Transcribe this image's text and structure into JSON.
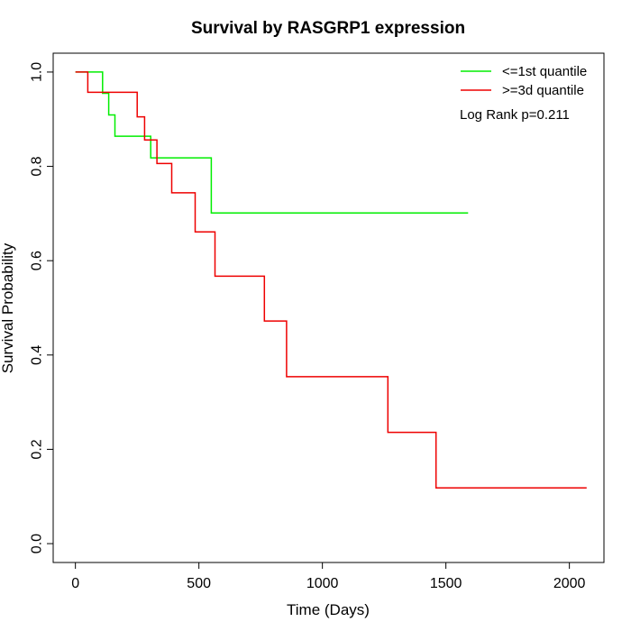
{
  "chart_data": {
    "type": "line",
    "step": true,
    "title": "Survival by RASGRP1 expression",
    "xlabel": "Time (Days)",
    "ylabel": "Survival Probability",
    "xlim": [
      -90,
      2140
    ],
    "ylim": [
      -0.04,
      1.04
    ],
    "xticks": [
      0,
      500,
      1000,
      1500,
      2000
    ],
    "yticks": [
      0.0,
      0.2,
      0.4,
      0.6,
      0.8,
      1.0
    ],
    "ytick_labels": [
      "0.0",
      "0.2",
      "0.4",
      "0.6",
      "0.8",
      "1.0"
    ],
    "annotation": "Log Rank p=0.211",
    "legend_position": "top-right",
    "series": [
      {
        "name": "<=1st quantile",
        "color": "#00ee00",
        "points": [
          [
            0,
            1.0
          ],
          [
            110,
            1.0
          ],
          [
            110,
            0.955
          ],
          [
            135,
            0.955
          ],
          [
            135,
            0.909
          ],
          [
            160,
            0.909
          ],
          [
            160,
            0.864
          ],
          [
            305,
            0.864
          ],
          [
            305,
            0.818
          ],
          [
            550,
            0.818
          ],
          [
            550,
            0.701
          ],
          [
            1590,
            0.701
          ]
        ]
      },
      {
        "name": ">=3d quantile",
        "color": "#ee0000",
        "points": [
          [
            0,
            1.0
          ],
          [
            50,
            1.0
          ],
          [
            50,
            0.957
          ],
          [
            250,
            0.957
          ],
          [
            250,
            0.905
          ],
          [
            280,
            0.905
          ],
          [
            280,
            0.856
          ],
          [
            330,
            0.856
          ],
          [
            330,
            0.806
          ],
          [
            390,
            0.806
          ],
          [
            390,
            0.744
          ],
          [
            485,
            0.744
          ],
          [
            485,
            0.661
          ],
          [
            565,
            0.661
          ],
          [
            565,
            0.567
          ],
          [
            765,
            0.567
          ],
          [
            765,
            0.472
          ],
          [
            855,
            0.472
          ],
          [
            855,
            0.354
          ],
          [
            1265,
            0.354
          ],
          [
            1265,
            0.236
          ],
          [
            1460,
            0.236
          ],
          [
            1460,
            0.118
          ],
          [
            2070,
            0.118
          ]
        ]
      }
    ]
  }
}
